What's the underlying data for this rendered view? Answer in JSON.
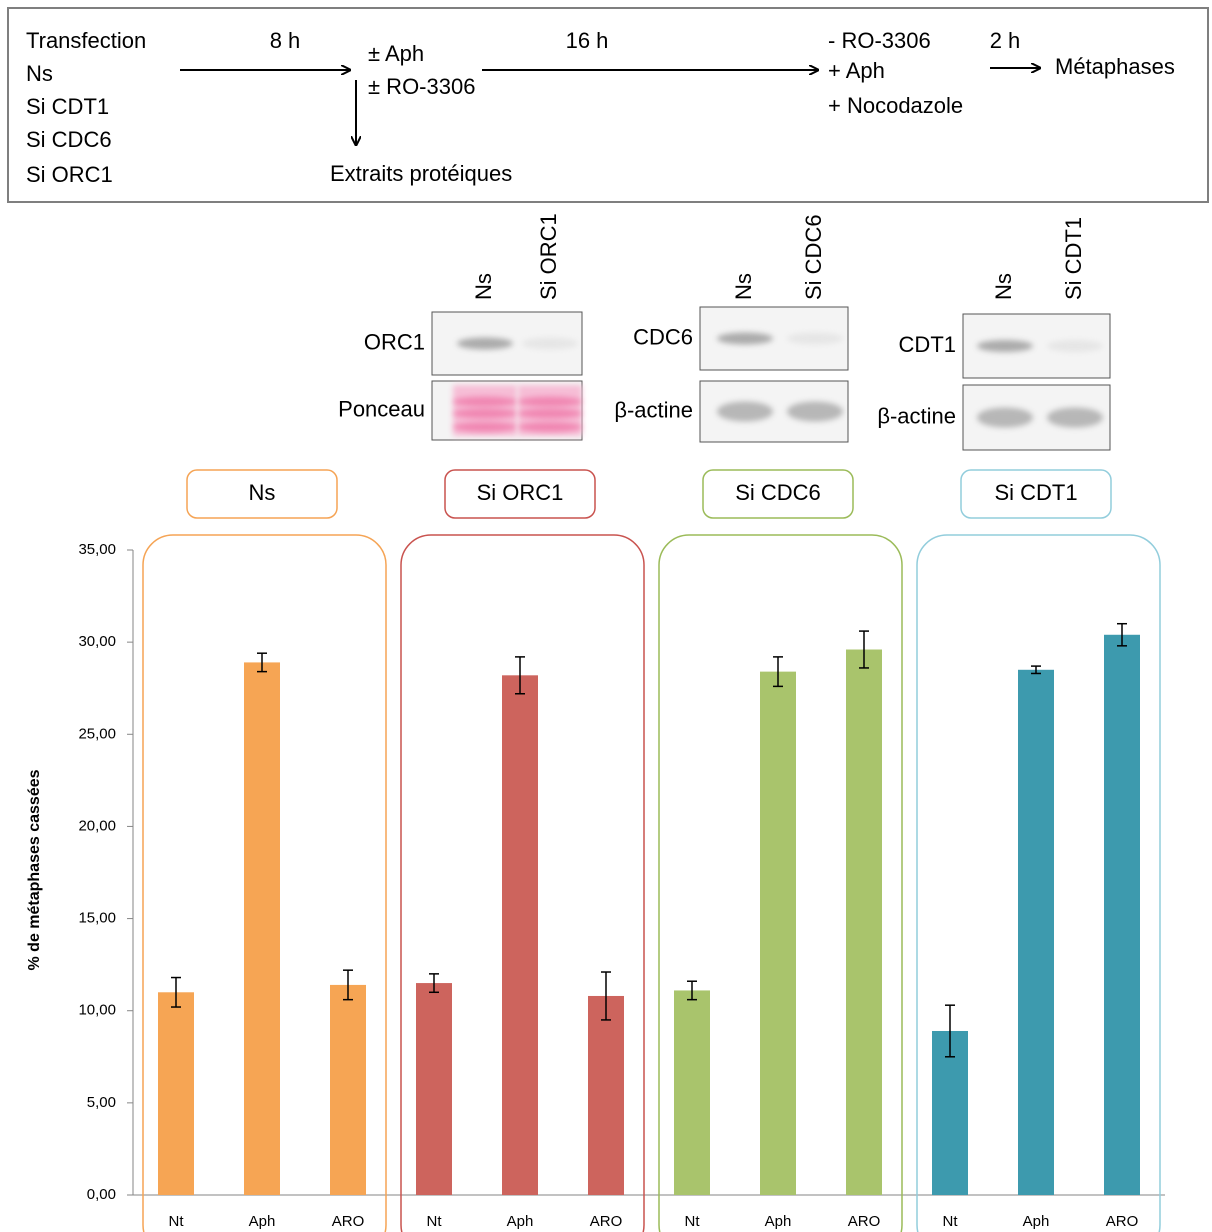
{
  "protocol": {
    "conditions": [
      "Transfection",
      "Ns",
      "Si CDT1",
      "Si CDC6",
      "Si ORC1"
    ],
    "step1_time": "8 h",
    "treatment": [
      "± Aph",
      "± RO-3306"
    ],
    "extracts": "Extraits protéiques",
    "step2_time": "16 h",
    "release": [
      "- RO-3306",
      "+ Aph",
      "+ Nocodazole"
    ],
    "step3_time": "2 h",
    "result": "Métaphases"
  },
  "blots": [
    {
      "lanes": [
        "Ns",
        "Si ORC1"
      ],
      "rows": [
        "ORC1",
        "Ponceau"
      ]
    },
    {
      "lanes": [
        "Ns",
        "Si CDC6"
      ],
      "rows": [
        "CDC6",
        "β-actine"
      ]
    },
    {
      "lanes": [
        "Ns",
        "Si CDT1"
      ],
      "rows": [
        "CDT1",
        "β-actine"
      ]
    }
  ],
  "chart_data": {
    "type": "bar",
    "y_label": "% de métaphases cassées",
    "categories": [
      "Nt",
      "Aph",
      "ARO"
    ],
    "series": [
      {
        "name": "Ns",
        "color": "#f6a554",
        "border": "#f5a455",
        "values": [
          11.0,
          28.9,
          11.4
        ],
        "errors": [
          0.8,
          0.5,
          0.8
        ]
      },
      {
        "name": "Si ORC1",
        "color": "#cd645d",
        "border": "#c9534f",
        "values": [
          11.5,
          28.2,
          10.8
        ],
        "errors": [
          0.5,
          1.0,
          1.3
        ]
      },
      {
        "name": "Si CDC6",
        "color": "#a9c46c",
        "border": "#9bbb59",
        "values": [
          11.1,
          28.4,
          29.6
        ],
        "errors": [
          0.5,
          0.8,
          1.0
        ]
      },
      {
        "name": "Si CDT1",
        "color": "#3d9aae",
        "border": "#92cddc",
        "values": [
          8.9,
          28.5,
          30.4
        ],
        "errors": [
          1.4,
          0.2,
          0.6
        ]
      }
    ],
    "ylim": [
      0,
      35
    ],
    "yticks": [
      {
        "value": 0,
        "label": "0,00"
      },
      {
        "value": 5,
        "label": "5,00"
      },
      {
        "value": 10,
        "label": "10,00"
      },
      {
        "value": 15,
        "label": "15,00"
      },
      {
        "value": 20,
        "label": "20,00"
      },
      {
        "value": 25,
        "label": "25,00"
      },
      {
        "value": 30,
        "label": "30,00"
      },
      {
        "value": 35,
        "label": "35,00"
      }
    ]
  }
}
